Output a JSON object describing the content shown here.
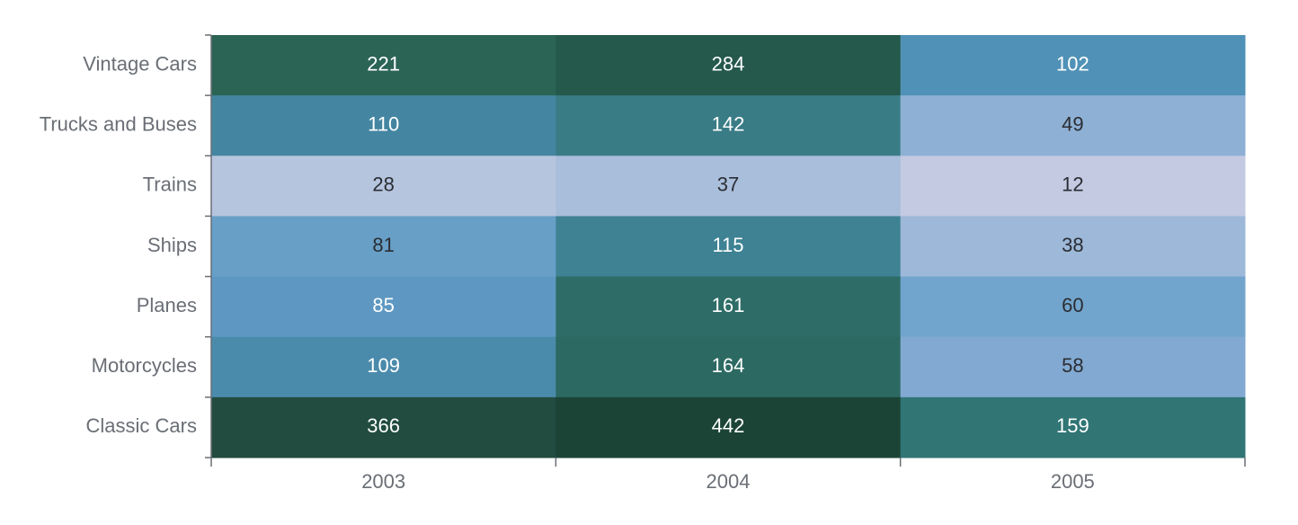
{
  "chart_data": {
    "type": "heatmap",
    "title": "",
    "xlabel": "",
    "ylabel": "",
    "x_categories": [
      "2003",
      "2004",
      "2005"
    ],
    "y_categories": [
      "Vintage Cars",
      "Trucks and Buses",
      "Trains",
      "Ships",
      "Planes",
      "Motorcycles",
      "Classic Cars"
    ],
    "values": [
      [
        221,
        284,
        102
      ],
      [
        110,
        142,
        49
      ],
      [
        28,
        37,
        12
      ],
      [
        81,
        115,
        38
      ],
      [
        85,
        161,
        60
      ],
      [
        109,
        164,
        58
      ],
      [
        366,
        442,
        159
      ]
    ],
    "colors": [
      [
        "#2b6455",
        "#24594b",
        "#5092b7"
      ],
      [
        "#4486a1",
        "#397c86",
        "#8eb0d4"
      ],
      [
        "#b6c5de",
        "#a9bedb",
        "#c3cae2"
      ],
      [
        "#689fc7",
        "#3e8294",
        "#9db8d8"
      ],
      [
        "#5e98c2",
        "#2e6d67",
        "#72a5cd"
      ],
      [
        "#4a8bac",
        "#2c6962",
        "#82a9d1"
      ],
      [
        "#214c3f",
        "#1b4436",
        "#317575"
      ]
    ],
    "label_colors": {
      "light": "#ffffff",
      "dark": "#2a2d33"
    },
    "axis_color": "#6a6e75",
    "grid": false,
    "legend": "none"
  }
}
